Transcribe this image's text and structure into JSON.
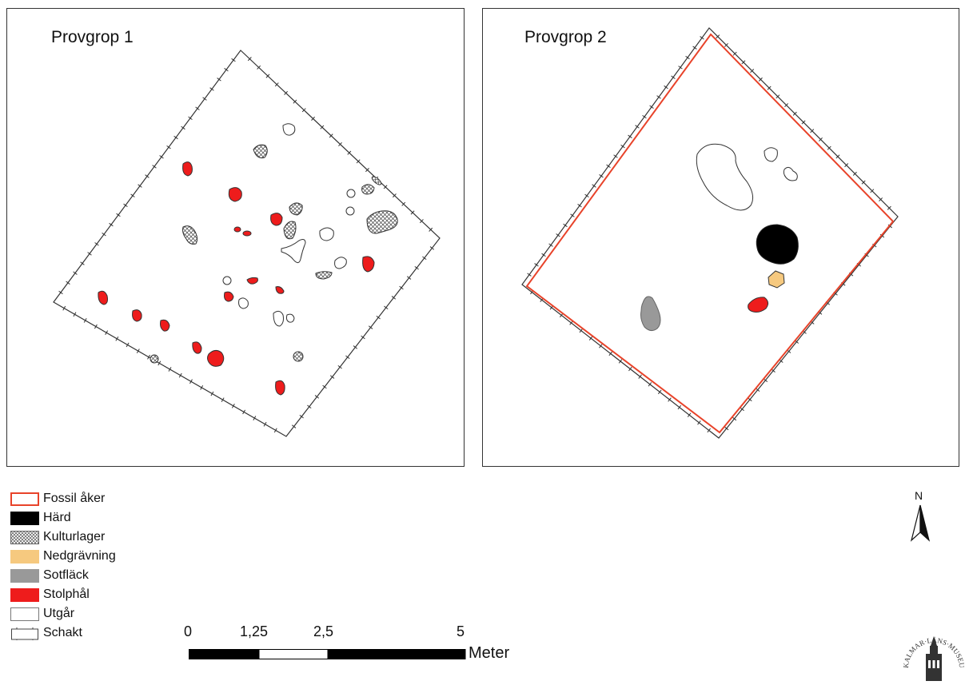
{
  "panels": {
    "p1": {
      "title": "Provgrop 1"
    },
    "p2": {
      "title": "Provgrop 2"
    }
  },
  "legend": {
    "items": [
      {
        "label": "Fossil åker",
        "key": "fossil-aker",
        "color": "#e8432a"
      },
      {
        "label": "Härd",
        "key": "hard",
        "color": "#000000"
      },
      {
        "label": "Kulturlager",
        "key": "kulturlager",
        "color": "#888888"
      },
      {
        "label": "Nedgrävning",
        "key": "nedgravning",
        "color": "#f6c97f"
      },
      {
        "label": "Sotfläck",
        "key": "sotflack",
        "color": "#999999"
      },
      {
        "label": "Stolphål",
        "key": "stolphal",
        "color": "#ee1c1c"
      },
      {
        "label": "Utgår",
        "key": "utgar",
        "color": "#ffffff"
      },
      {
        "label": "Schakt",
        "key": "schakt",
        "color": "#ffffff"
      }
    ]
  },
  "scale": {
    "ticks": [
      "0",
      "1,25",
      "2,5",
      "5"
    ],
    "unit": "Meter"
  },
  "north": {
    "label": "N"
  },
  "colors": {
    "stolphal": "#ee1c1c",
    "hard": "#000000",
    "nedgravning": "#f6c97f",
    "sotflack": "#999999",
    "fossil_aker": "#e8432a",
    "outline": "#333333"
  },
  "logo": {
    "text": "KALMAR·LÄNS·MUSEUM"
  }
}
